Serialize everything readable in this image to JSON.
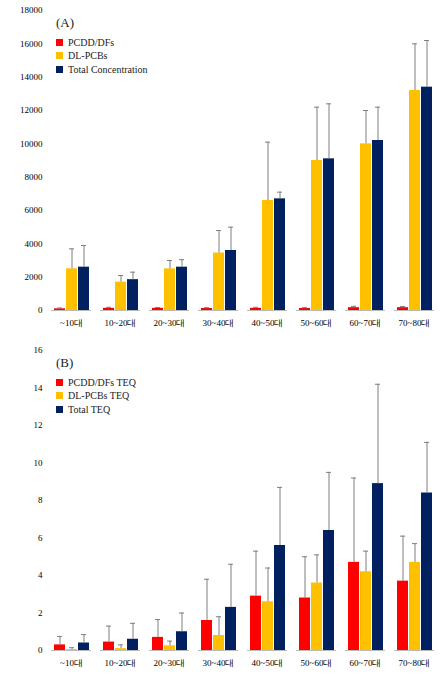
{
  "chart_data": [
    {
      "type": "bar",
      "title": "(A)",
      "categories": [
        "~10대",
        "10~20대",
        "20~30대",
        "30~40대",
        "40~50대",
        "50~60대",
        "60~70대",
        "70~80대"
      ],
      "series": [
        {
          "name": "PCDD/DFs",
          "color": "#ff0000",
          "values": [
            100,
            130,
            130,
            120,
            130,
            120,
            170,
            170
          ],
          "errors": [
            50,
            60,
            50,
            50,
            60,
            50,
            80,
            70
          ]
        },
        {
          "name": "DL-PCBs",
          "color": "#ffc000",
          "values": [
            2500,
            1700,
            2500,
            3450,
            6600,
            9000,
            10000,
            13200
          ],
          "errors": [
            1200,
            400,
            500,
            1350,
            3500,
            3200,
            2000,
            2800
          ]
        },
        {
          "name": "Total Concentration",
          "color": "#002060",
          "values": [
            2600,
            1850,
            2600,
            3600,
            6700,
            9100,
            10200,
            13400
          ],
          "errors": [
            1300,
            450,
            450,
            1400,
            400,
            3300,
            2000,
            2800
          ]
        }
      ],
      "ylim": [
        0,
        18000
      ],
      "yticks": [
        0,
        2000,
        4000,
        6000,
        8000,
        10000,
        12000,
        14000,
        16000,
        18000
      ],
      "grid": false,
      "legend": "top-left"
    },
    {
      "type": "bar",
      "title": "(B)",
      "categories": [
        "~10대",
        "10~20대",
        "20~30대",
        "30~40대",
        "40~50대",
        "50~60대",
        "60~70대",
        "70~80대"
      ],
      "series": [
        {
          "name": "PCDD/DFs TEQ",
          "color": "#ff0000",
          "values": [
            0.3,
            0.45,
            0.7,
            1.6,
            2.9,
            2.8,
            4.7,
            3.7
          ],
          "errors": [
            0.45,
            0.85,
            0.95,
            2.2,
            2.4,
            2.2,
            4.5,
            2.4
          ]
        },
        {
          "name": "DL-PCBs TEQ",
          "color": "#ffc000",
          "values": [
            0.05,
            0.1,
            0.25,
            0.8,
            2.6,
            3.6,
            4.2,
            4.7
          ],
          "errors": [
            0.1,
            0.2,
            0.25,
            1.0,
            1.8,
            1.5,
            1.1,
            1.0
          ]
        },
        {
          "name": "Total TEQ",
          "color": "#002060",
          "values": [
            0.4,
            0.6,
            1.0,
            2.3,
            5.6,
            6.4,
            8.9,
            8.4
          ],
          "errors": [
            0.45,
            0.85,
            1.0,
            2.3,
            3.1,
            3.1,
            5.3,
            2.7
          ]
        }
      ],
      "ylim": [
        0,
        16
      ],
      "yticks": [
        0,
        2,
        4,
        6,
        8,
        10,
        12,
        14,
        16
      ],
      "grid": false,
      "legend": "top-left"
    }
  ]
}
